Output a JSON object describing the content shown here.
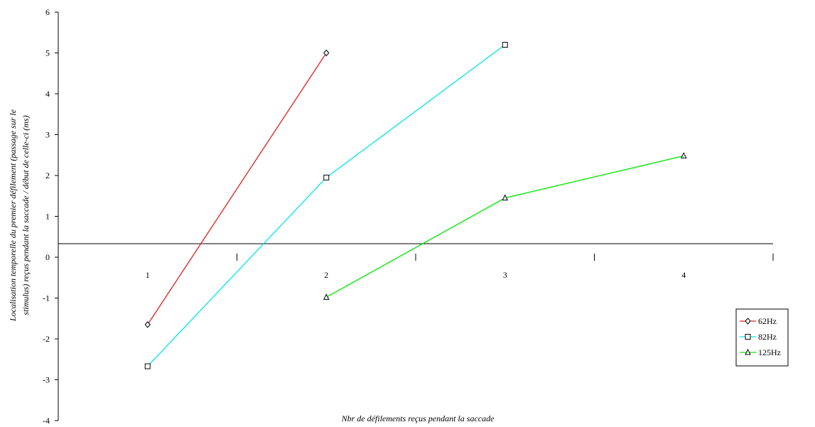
{
  "chart_data": {
    "type": "line",
    "xlabel": "Nbr de défilements reçus pendant la saccade",
    "ylabel_lines": [
      "Localisation temporelle du premier défilement (passage sur le",
      "stimulus) reçus pendant la saccade / début de celle-ci (ms)"
    ],
    "x_categories": [
      "1",
      "2",
      "3",
      "4"
    ],
    "y_ticks": [
      "-4",
      "-3",
      "-2",
      "-1",
      "0",
      "1",
      "2",
      "3",
      "4",
      "5",
      "6"
    ],
    "ylim": [
      -4,
      6
    ],
    "grid": false,
    "legend_position": "right",
    "series": [
      {
        "name": "62Hz",
        "color": "#e0201b",
        "marker": "diamond",
        "x": [
          1,
          2
        ],
        "y": [
          -1.65,
          5.0
        ]
      },
      {
        "name": "82Hz",
        "color": "#00e5ee",
        "marker": "square",
        "x": [
          1,
          2,
          3
        ],
        "y": [
          -2.67,
          1.95,
          5.2
        ]
      },
      {
        "name": "125Hz",
        "color": "#00e600",
        "marker": "triangle",
        "x": [
          2,
          3,
          4
        ],
        "y": [
          -0.98,
          1.45,
          2.48
        ]
      }
    ]
  }
}
